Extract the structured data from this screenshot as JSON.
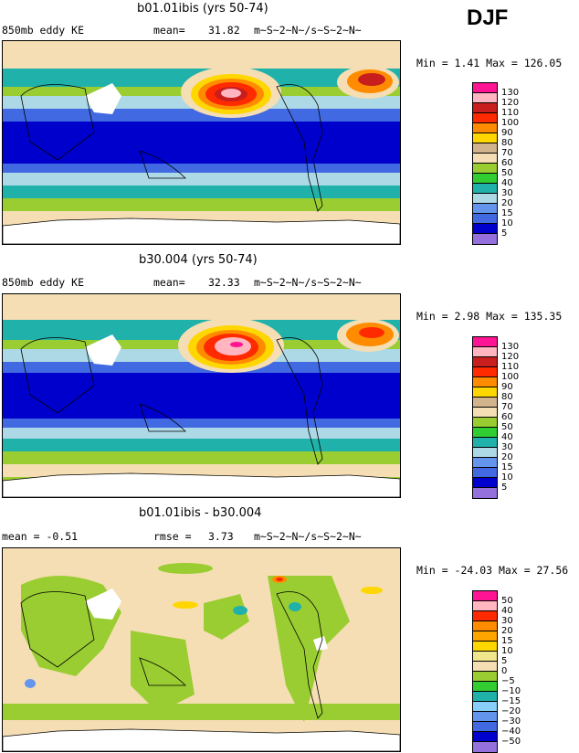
{
  "season": "DJF",
  "panels": [
    {
      "title": "b01.01ibis (yrs 50-74)",
      "left_label": "850mb eddy KE",
      "stat_label": "mean=",
      "stat_value": "31.82",
      "units": "m~S~2~N~/s~S~2~N~",
      "range_text": "Min =   1.41 Max = 126.05",
      "legend_labels": [
        "130",
        "120",
        "110",
        "100",
        "90",
        "80",
        "70",
        "60",
        "50",
        "40",
        "30",
        "20",
        "15",
        "10",
        "5"
      ],
      "legend_colors": [
        "#ff1493",
        "#ffb6c1",
        "#c81e1e",
        "#ff2a00",
        "#ff8c00",
        "#ffd700",
        "#d2b48c",
        "#f5deb3",
        "#9acd32",
        "#32cd32",
        "#20b2aa",
        "#add8e6",
        "#6495ed",
        "#4169e1",
        "#0000cd",
        "#9370db"
      ]
    },
    {
      "title": "b30.004 (yrs 50-74)",
      "left_label": "850mb eddy KE",
      "stat_label": "mean=",
      "stat_value": "32.33",
      "units": "m~S~2~N~/s~S~2~N~",
      "range_text": "Min =   2.98 Max = 135.35",
      "legend_labels": [
        "130",
        "120",
        "110",
        "100",
        "90",
        "80",
        "70",
        "60",
        "50",
        "40",
        "30",
        "20",
        "15",
        "10",
        "5"
      ],
      "legend_colors": [
        "#ff1493",
        "#ffb6c1",
        "#c81e1e",
        "#ff2a00",
        "#ff8c00",
        "#ffd700",
        "#d2b48c",
        "#f5deb3",
        "#9acd32",
        "#32cd32",
        "#20b2aa",
        "#add8e6",
        "#6495ed",
        "#4169e1",
        "#0000cd",
        "#9370db"
      ]
    },
    {
      "title": "b01.01ibis - b30.004",
      "left_label": "mean =   -0.51",
      "stat_label": "rmse =",
      "stat_value": "3.73",
      "units": "m~S~2~N~/s~S~2~N~",
      "range_text": "Min = -24.03 Max =  27.56",
      "legend_labels": [
        "50",
        "40",
        "30",
        "20",
        "15",
        "10",
        "5",
        "0",
        "−5",
        "−10",
        "−15",
        "−20",
        "−30",
        "−40",
        "−50"
      ],
      "legend_colors": [
        "#ff1493",
        "#ffb6c1",
        "#ff2a00",
        "#ff8c00",
        "#ffa500",
        "#ffd700",
        "#f0e68c",
        "#f5deb3",
        "#9acd32",
        "#32cd32",
        "#20b2aa",
        "#87cefa",
        "#6495ed",
        "#4169e1",
        "#0000cd",
        "#9370db"
      ]
    }
  ]
}
